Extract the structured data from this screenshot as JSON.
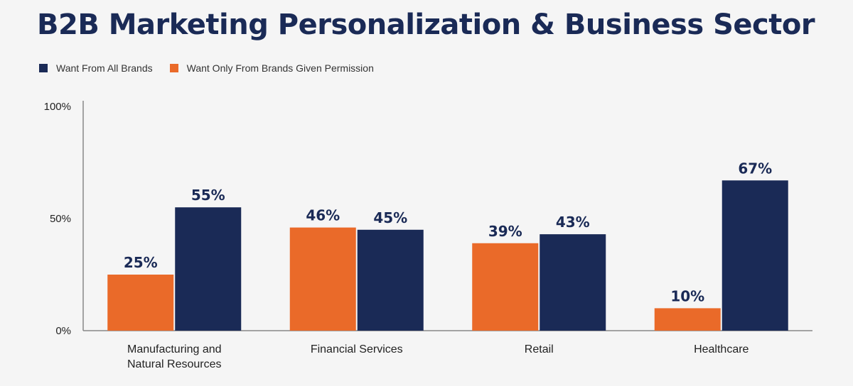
{
  "title": "B2B Marketing Personalization & Business Sector",
  "colors": {
    "all_brands": "#1a2a56",
    "permission": "#ea6a29",
    "background": "#f5f5f5"
  },
  "chart_data": {
    "type": "bar",
    "categories": [
      [
        "Manufacturing and",
        "Natural Resources"
      ],
      [
        "Financial Services"
      ],
      [
        "Retail"
      ],
      [
        "Healthcare"
      ]
    ],
    "series": [
      {
        "name": "Want Only From Brands Given Permission",
        "values": [
          25,
          46,
          39,
          10
        ],
        "labels": [
          "25%",
          "46%",
          "39%",
          "10%"
        ]
      },
      {
        "name": "Want From All Brands",
        "values": [
          55,
          45,
          43,
          67
        ],
        "labels": [
          "55%",
          "45%",
          "43%",
          "67%"
        ]
      }
    ],
    "legend_order": [
      1,
      0
    ],
    "ylim": [
      0,
      100
    ],
    "yticks": [
      0,
      50,
      100
    ],
    "ytick_labels": [
      "0%",
      "50%",
      "100%"
    ],
    "grid": false,
    "legend_position": "top-left"
  }
}
